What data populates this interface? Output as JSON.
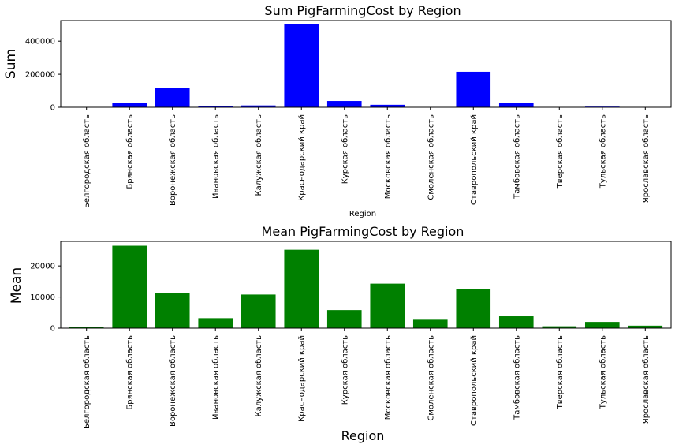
{
  "chart_data": [
    {
      "type": "bar",
      "title": "Sum PigFarmingCost by Region",
      "xlabel": "Region",
      "ylabel": "Sum",
      "ylim": [
        0,
        525000
      ],
      "yticks": [
        0,
        200000,
        400000
      ],
      "color": "#0000ff",
      "categories": [
        "Белгородская область",
        "Брянская область",
        "Воронежская область",
        "Ивановская область",
        "Калужская область",
        "Краснодарский край",
        "Курская область",
        "Московская область",
        "Смоленская область",
        "Ставропольский край",
        "Тамбовская область",
        "Тверская область",
        "Тульская область",
        "Ярославская область"
      ],
      "values": [
        400,
        26000,
        115000,
        6000,
        11000,
        505000,
        38000,
        15000,
        1500,
        215000,
        25000,
        700,
        4000,
        1500
      ]
    },
    {
      "type": "bar",
      "title": "Mean PigFarmingCost by Region",
      "xlabel": "Region",
      "ylabel": "Mean",
      "ylim": [
        0,
        27900
      ],
      "yticks": [
        0,
        10000,
        20000
      ],
      "color": "#008000",
      "categories": [
        "Белгородская область",
        "Брянская область",
        "Воронежская область",
        "Ивановская область",
        "Калужская область",
        "Краснодарский край",
        "Курская область",
        "Московская область",
        "Смоленская область",
        "Ставропольский край",
        "Тамбовская область",
        "Тверская область",
        "Тульская область",
        "Ярославская область"
      ],
      "values": [
        300,
        26500,
        11300,
        3200,
        10800,
        25200,
        5800,
        14300,
        2700,
        12500,
        3800,
        600,
        2000,
        800
      ]
    }
  ]
}
